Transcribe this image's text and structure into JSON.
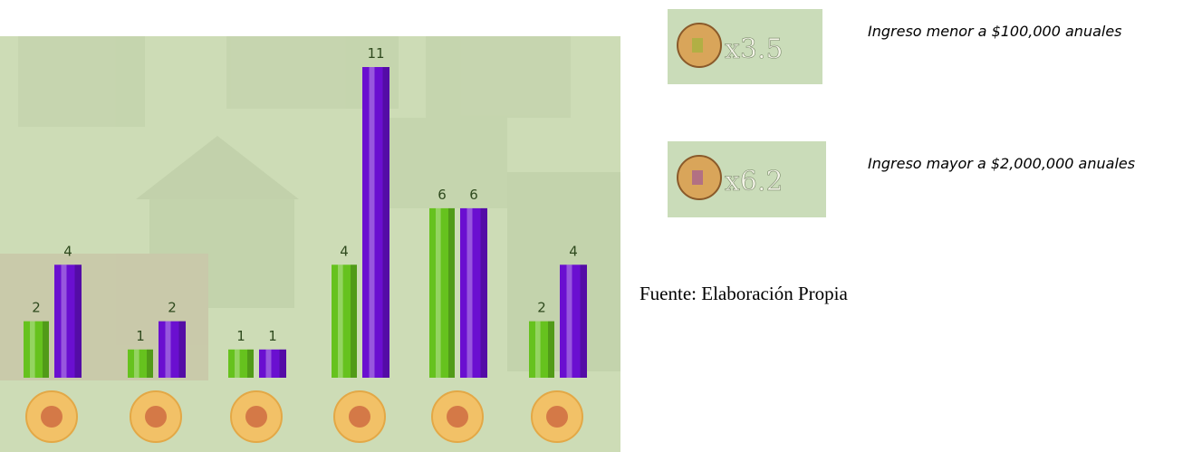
{
  "chart_data": {
    "type": "bar",
    "categories": [
      null,
      null,
      null,
      null,
      null,
      null
    ],
    "series": [
      {
        "name": "Ingreso menor a $100,000 anuales",
        "badge": "x3.5",
        "color": "#66c21e",
        "values": [
          2,
          1,
          1,
          4,
          6,
          2
        ]
      },
      {
        "name": "Ingreso mayor a $2,000,000 anuales",
        "badge": "x6.2",
        "color": "#6a0fd0",
        "values": [
          4,
          2,
          1,
          11,
          6,
          4
        ]
      }
    ],
    "source": "Fuente: Elaboración Propia"
  }
}
